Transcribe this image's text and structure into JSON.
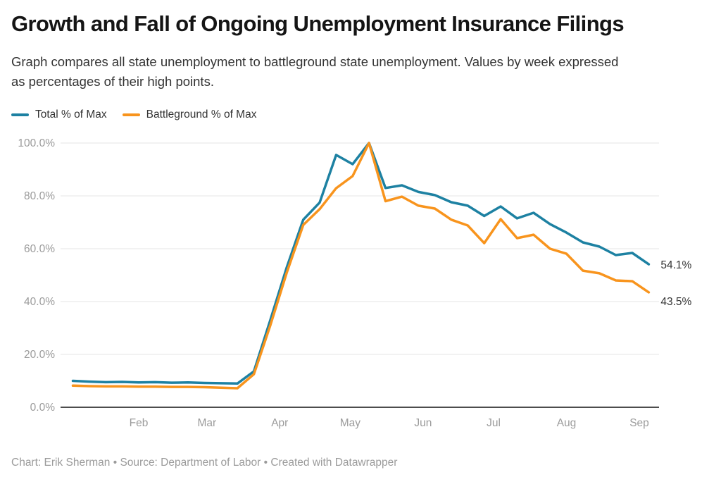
{
  "footer": {
    "text": "Chart: Erik Sherman • Source: Department of Labor • Created with Datawrapper"
  },
  "chart_data": {
    "type": "line",
    "title": "Growth and Fall of Ongoing Unemployment Insurance Filings",
    "subtitle": "Graph compares all state unemployment to battleground state unemployment. Values by week expressed as percentages of their high points.",
    "xlabel": "",
    "ylabel": "",
    "ylim": [
      0,
      100
    ],
    "grid": "horizontal",
    "legend_position": "top-left",
    "y_ticks": [
      {
        "value": 0,
        "label": "0.0%"
      },
      {
        "value": 20,
        "label": "20.0%"
      },
      {
        "value": 40,
        "label": "40.0%"
      },
      {
        "value": 60,
        "label": "60.0%"
      },
      {
        "value": 80,
        "label": "80.0%"
      },
      {
        "value": 100,
        "label": "100.0%"
      }
    ],
    "x_ticks": [
      "Feb",
      "Mar",
      "Apr",
      "May",
      "Jun",
      "Jul",
      "Aug",
      "Sep"
    ],
    "x": [
      "2020-01-04",
      "2020-01-11",
      "2020-01-18",
      "2020-01-25",
      "2020-02-01",
      "2020-02-08",
      "2020-02-15",
      "2020-02-22",
      "2020-02-29",
      "2020-03-07",
      "2020-03-14",
      "2020-03-21",
      "2020-03-28",
      "2020-04-04",
      "2020-04-11",
      "2020-04-18",
      "2020-04-25",
      "2020-05-02",
      "2020-05-09",
      "2020-05-16",
      "2020-05-23",
      "2020-05-30",
      "2020-06-06",
      "2020-06-13",
      "2020-06-20",
      "2020-06-27",
      "2020-07-04",
      "2020-07-11",
      "2020-07-18",
      "2020-07-25",
      "2020-08-01",
      "2020-08-08",
      "2020-08-15",
      "2020-08-22",
      "2020-08-29",
      "2020-09-05"
    ],
    "series": [
      {
        "name": "Total % of Max",
        "color": "#1d81a2",
        "end_label": "54.1%",
        "values": [
          10.0,
          9.7,
          9.5,
          9.6,
          9.4,
          9.5,
          9.3,
          9.4,
          9.2,
          9.1,
          9.0,
          13.6,
          33.0,
          53.0,
          71.0,
          77.5,
          95.5,
          92.0,
          100.0,
          83.0,
          84.0,
          81.5,
          80.3,
          77.6,
          76.3,
          72.4,
          76.0,
          71.5,
          73.6,
          69.3,
          66.1,
          62.4,
          60.8,
          57.6,
          58.4,
          54.1
        ]
      },
      {
        "name": "Battleground % of Max",
        "color": "#f8941d",
        "end_label": "43.5%",
        "values": [
          8.2,
          8.0,
          7.9,
          7.9,
          7.8,
          7.8,
          7.7,
          7.7,
          7.6,
          7.4,
          7.2,
          12.5,
          31.0,
          51.0,
          69.0,
          75.0,
          82.9,
          87.5,
          100.0,
          78.0,
          79.7,
          76.3,
          75.2,
          71.0,
          68.8,
          62.1,
          71.2,
          64.0,
          65.3,
          60.0,
          58.1,
          51.7,
          50.7,
          48.0,
          47.7,
          43.5
        ]
      }
    ]
  }
}
